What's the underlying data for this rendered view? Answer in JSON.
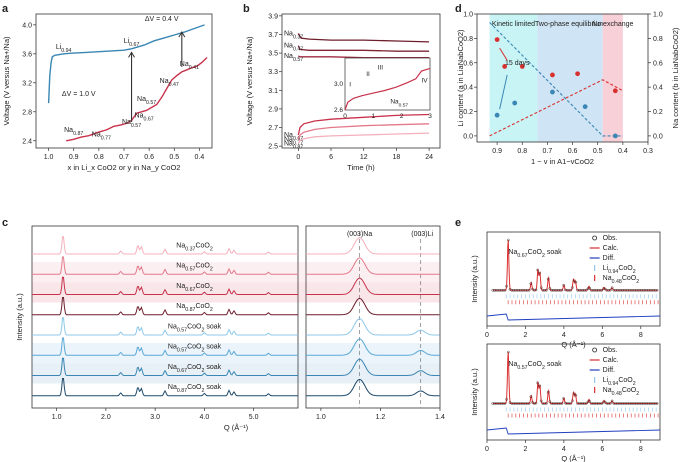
{
  "panels": {
    "a": "a",
    "b": "b",
    "c": "c",
    "d": "d",
    "e": "e"
  },
  "chart_data": [
    {
      "id": "a",
      "type": "line",
      "title": "",
      "xlabel": "x in Li_x CoO2 or y in Na_y CoO2",
      "ylabel": "Voltage (V versus Na+/Na)",
      "xlim": [
        1.05,
        0.35
      ],
      "ylim": [
        2.3,
        4.15
      ],
      "xticks": [
        1.0,
        0.9,
        0.8,
        0.7,
        0.6,
        0.5,
        0.4
      ],
      "yticks": [
        2.4,
        2.8,
        3.2,
        3.6,
        4.0
      ],
      "series": [
        {
          "name": "LixCoO2",
          "color": "#3a86b4",
          "x": [
            1.0,
            0.995,
            0.99,
            0.985,
            0.975,
            0.94,
            0.9,
            0.85,
            0.8,
            0.75,
            0.7,
            0.67,
            0.62,
            0.58,
            0.54,
            0.5,
            0.46,
            0.42,
            0.38
          ],
          "y": [
            2.92,
            3.3,
            3.48,
            3.56,
            3.58,
            3.6,
            3.61,
            3.62,
            3.63,
            3.64,
            3.65,
            3.67,
            3.72,
            3.78,
            3.82,
            3.86,
            3.9,
            3.95,
            4.0
          ]
        },
        {
          "name": "NayCoO2",
          "color": "#c8324b",
          "x": [
            0.93,
            0.9,
            0.87,
            0.84,
            0.8,
            0.77,
            0.74,
            0.71,
            0.69,
            0.67,
            0.65,
            0.63,
            0.61,
            0.59,
            0.57,
            0.55,
            0.53,
            0.51,
            0.49,
            0.47,
            0.45,
            0.43,
            0.41,
            0.39,
            0.37
          ],
          "y": [
            2.4,
            2.42,
            2.45,
            2.47,
            2.52,
            2.55,
            2.6,
            2.62,
            2.64,
            2.68,
            2.78,
            2.8,
            2.82,
            2.86,
            2.9,
            3.0,
            3.12,
            3.24,
            3.3,
            3.35,
            3.38,
            3.41,
            3.43,
            3.48,
            3.55
          ]
        }
      ],
      "annotations": [
        {
          "text": "ΔV = 0.4 V",
          "x": 0.55,
          "y": 4.05
        },
        {
          "text": "ΔV = 1.0 V",
          "x": 0.88,
          "y": 3.02
        },
        {
          "text": "Li0.94",
          "x": 0.94,
          "y": 3.67
        },
        {
          "text": "Li0.67",
          "x": 0.67,
          "y": 3.75
        },
        {
          "text": "Na0.87",
          "x": 0.9,
          "y": 2.52
        },
        {
          "text": "Na0.77",
          "x": 0.79,
          "y": 2.46
        },
        {
          "text": "Na0.67",
          "x": 0.62,
          "y": 2.72
        },
        {
          "text": "Na0.57",
          "x": 0.61,
          "y": 2.95
        },
        {
          "text": "Na0.57",
          "x": 0.67,
          "y": 2.63
        },
        {
          "text": "Na0.47",
          "x": 0.52,
          "y": 3.2
        },
        {
          "text": "Na0.41",
          "x": 0.44,
          "y": 3.43
        }
      ]
    },
    {
      "id": "b",
      "type": "line",
      "xlabel": "Time (h)",
      "ylabel": "Voltage (V versus Na+/Na)",
      "xlim": [
        -3,
        26
      ],
      "ylim": [
        2.48,
        3.92
      ],
      "xticks": [
        0,
        6,
        12,
        18,
        24
      ],
      "yticks": [
        2.5,
        2.7,
        2.9,
        3.1,
        3.3,
        3.5,
        3.7,
        3.9
      ],
      "series": [
        {
          "name": "Na0.37",
          "color": "#6e1f2c",
          "t": [
            0,
            0.5,
            2,
            6,
            12,
            18,
            24
          ],
          "v": [
            3.71,
            3.66,
            3.65,
            3.64,
            3.64,
            3.63,
            3.62
          ]
        },
        {
          "name": "Na0.47",
          "color": "#7e2535",
          "t": [
            0,
            0.3,
            2,
            6,
            12,
            18,
            24
          ],
          "v": [
            3.58,
            3.54,
            3.53,
            3.53,
            3.53,
            3.52,
            3.52
          ]
        },
        {
          "name": "Na0.57",
          "color": "#9e2c40",
          "t": [
            0,
            0.3,
            2,
            6,
            12,
            18,
            24
          ],
          "v": [
            3.47,
            3.46,
            3.46,
            3.46,
            3.45,
            3.45,
            3.45
          ]
        },
        {
          "name": "Na0.67",
          "color": "#c8324b",
          "t": [
            0,
            0.3,
            1,
            3,
            6,
            12,
            18,
            24
          ],
          "v": [
            2.62,
            2.7,
            2.74,
            2.77,
            2.79,
            2.81,
            2.83,
            2.84
          ]
        },
        {
          "name": "Na0.77",
          "color": "#e4798a",
          "t": [
            0,
            0.3,
            1,
            3,
            6,
            12,
            18,
            24
          ],
          "v": [
            2.57,
            2.62,
            2.65,
            2.68,
            2.7,
            2.72,
            2.73,
            2.74
          ]
        },
        {
          "name": "Na0.87",
          "color": "#f4b0bb",
          "t": [
            0,
            0.3,
            1,
            3,
            6,
            12,
            18,
            24
          ],
          "v": [
            2.53,
            2.56,
            2.58,
            2.6,
            2.61,
            2.62,
            2.63,
            2.64
          ]
        }
      ],
      "inset": {
        "xlim": [
          0,
          3
        ],
        "ylim": [
          2.6,
          3.4
        ],
        "xticks": [
          0,
          1,
          2,
          3
        ],
        "yticks": [
          2.6,
          3.0
        ],
        "t": [
          0,
          0.1,
          0.3,
          0.6,
          1.0,
          1.4,
          1.8,
          2.2,
          2.5,
          2.7,
          3.0
        ],
        "v": [
          2.6,
          2.72,
          2.78,
          2.82,
          2.86,
          2.9,
          2.95,
          3.02,
          3.08,
          3.2,
          3.24
        ],
        "labels": [
          "I",
          "II",
          "III",
          "IV"
        ],
        "series_label": "Na0.57"
      }
    },
    {
      "id": "c",
      "type": "line",
      "xlabel": "Q (Å⁻¹)",
      "ylabel": "Intensity (a.u.)",
      "xlim_left": [
        0.5,
        5.9
      ],
      "xticks_left": [
        1.0,
        2.0,
        3.0,
        4.0,
        5.0
      ],
      "xlim_right": [
        0.95,
        1.4
      ],
      "xticks_right": [
        1.0,
        1.2,
        1.4
      ],
      "peak_labels": [
        "(003)Na",
        "(003)Li"
      ],
      "traces": [
        {
          "name": "Na0.37CoO2",
          "color": "#f4b0bb",
          "shaded": false
        },
        {
          "name": "Na0.57CoO2",
          "color": "#e4798a",
          "shaded": true
        },
        {
          "name": "Na0.67CoO2",
          "color": "#c8324b",
          "shaded": true
        },
        {
          "name": "Na0.87CoO2",
          "color": "#6e1f2c",
          "shaded": false
        },
        {
          "name": "Na0.57CoO2 soak",
          "color": "#8cc8e8",
          "shaded": false
        },
        {
          "name": "Na0.57CoO2 soak",
          "color": "#5aa8d8",
          "shaded": true
        },
        {
          "name": "Na0.67CoO2 soak",
          "color": "#3a86b4",
          "shaded": true
        },
        {
          "name": "Na0.87CoO2 soak",
          "color": "#1f4a6b",
          "shaded": false
        }
      ]
    },
    {
      "id": "d",
      "type": "scatter",
      "xlabel": "1 − v in A1−vCoO2",
      "ylabel_left": "Li content (a in LiaNabCoO2)",
      "ylabel_right": "Na content (b in LiaNabCoO2)",
      "xlim": [
        0.98,
        0.3
      ],
      "xticks": [
        0.9,
        0.8,
        0.7,
        0.6,
        0.5,
        0.4,
        0.3
      ],
      "ylim": [
        -0.05,
        1.0
      ],
      "yticks": [
        0,
        0.2,
        0.4,
        0.6,
        0.8,
        1.0
      ],
      "regions": [
        {
          "name": "Kinetic limited",
          "from": 0.93,
          "to": 0.74,
          "color": "#c8f4f6"
        },
        {
          "name": "Two-phase equilibrium",
          "from": 0.74,
          "to": 0.48,
          "color": "#cfe4f4"
        },
        {
          "name": "No exchange",
          "from": 0.48,
          "to": 0.4,
          "color": "#f8d0d8"
        }
      ],
      "series": [
        {
          "name": "Li content",
          "color": "#3a86b4",
          "x": [
            0.9,
            0.83,
            0.68,
            0.55,
            0.43
          ],
          "y": [
            0.17,
            0.27,
            0.36,
            0.24,
            0.0
          ],
          "trend": [
            [
              0.93,
              0.93
            ],
            [
              0.48,
              0.0
            ],
            [
              0.4,
              0.0
            ]
          ]
        },
        {
          "name": "Na content",
          "color": "#d93030",
          "x": [
            0.9,
            0.87,
            0.8,
            0.68,
            0.58,
            0.43
          ],
          "y": [
            0.79,
            0.57,
            0.57,
            0.5,
            0.51,
            0.37
          ],
          "trend": [
            [
              0.93,
              0.0
            ],
            [
              0.48,
              0.46
            ],
            [
              0.4,
              0.37
            ]
          ]
        }
      ],
      "annotations": [
        {
          "text": "15 days"
        }
      ]
    },
    {
      "id": "e",
      "type": "line",
      "xlabel": "Q (Å⁻¹)",
      "ylabel": "Intensity (a.u.)",
      "xlim": [
        0,
        9
      ],
      "xticks": [
        0,
        2,
        4,
        6,
        8
      ],
      "legend": [
        "Obs.",
        "Calc.",
        "Diff.",
        "Li0.94CoO2",
        "Na0.48CoO2"
      ],
      "subplots": [
        {
          "label": "Na0.67CoO2 soak"
        },
        {
          "label": "Na0.57CoO2 soak"
        }
      ]
    }
  ]
}
